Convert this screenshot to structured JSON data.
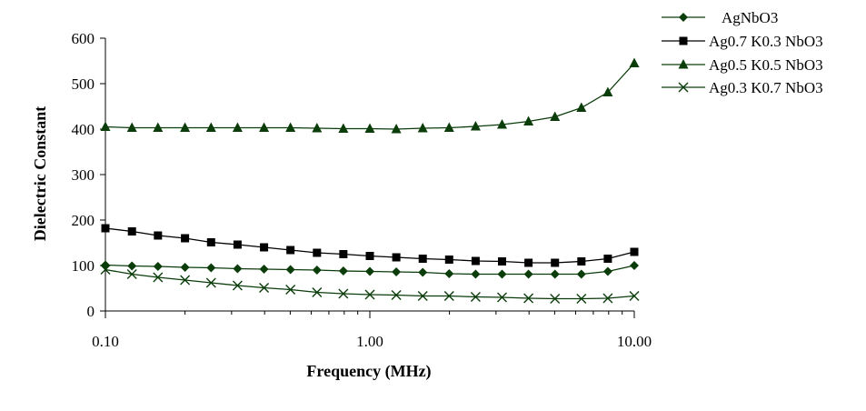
{
  "chart_data": {
    "type": "line",
    "xlabel": "Frequency (MHz)",
    "ylabel": "Dielectric Constant",
    "x_scale": "log",
    "xlim": [
      0.1,
      10
    ],
    "ylim": [
      0,
      600
    ],
    "x_ticks": [
      0.1,
      1,
      10
    ],
    "x_tick_labels": [
      "0.10",
      "1.00",
      "10.00"
    ],
    "y_ticks": [
      0,
      100,
      200,
      300,
      400,
      500,
      600
    ],
    "y_tick_labels": [
      "0",
      "100",
      "200",
      "300",
      "400",
      "500",
      "600"
    ],
    "grid": false,
    "legend_position": "top-right",
    "x": [
      0.1,
      0.126,
      0.158,
      0.2,
      0.251,
      0.316,
      0.398,
      0.501,
      0.631,
      0.794,
      1.0,
      1.259,
      1.585,
      1.995,
      2.512,
      3.162,
      3.981,
      5.012,
      6.31,
      7.943,
      10.0
    ],
    "series": [
      {
        "name": "AgNbO3",
        "marker": "diamond",
        "color": "#0b3d0b",
        "values": [
          101,
          99,
          98,
          96,
          95,
          93,
          92,
          91,
          90,
          88,
          87,
          86,
          85,
          82,
          81,
          81,
          81,
          81,
          81,
          87,
          100
        ]
      },
      {
        "name": "Ag0.7 K0.3 NbO3",
        "marker": "square",
        "color": "#000000",
        "values": [
          182,
          175,
          166,
          160,
          151,
          146,
          140,
          134,
          128,
          125,
          121,
          118,
          115,
          113,
          110,
          109,
          106,
          106,
          109,
          115,
          130
        ]
      },
      {
        "name": "Ag0.5 K0.5 NbO3",
        "marker": "triangle",
        "color": "#0b3d0b",
        "values": [
          405,
          403,
          403,
          403,
          403,
          403,
          403,
          403,
          402,
          401,
          401,
          400,
          402,
          403,
          406,
          410,
          417,
          427,
          447,
          481,
          545
        ]
      },
      {
        "name": "Ag0.3 K0.7 NbO3",
        "marker": "x",
        "color": "#0b3d0b",
        "values": [
          91,
          81,
          74,
          68,
          62,
          56,
          51,
          47,
          41,
          38,
          36,
          35,
          33,
          33,
          31,
          30,
          28,
          27,
          27,
          28,
          33
        ]
      }
    ]
  }
}
